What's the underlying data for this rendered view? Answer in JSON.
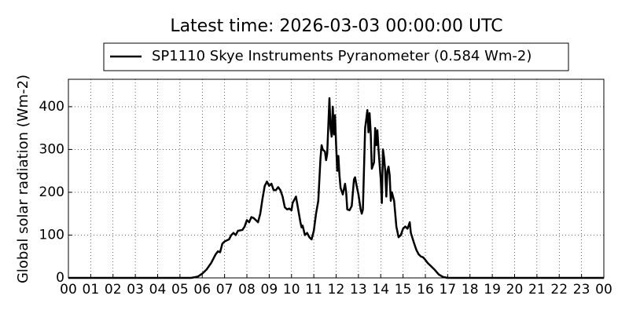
{
  "chart_data": {
    "type": "line",
    "title": "Latest time: 2026-03-03 00:00:00 UTC",
    "y_label": "Global solar radiation (Wm-2)",
    "grid": true,
    "legend": "top",
    "xlim": [
      0,
      24
    ],
    "xticks": [
      {
        "value": 0,
        "label": "00"
      },
      {
        "value": 1,
        "label": "01"
      },
      {
        "value": 2,
        "label": "02"
      },
      {
        "value": 3,
        "label": "03"
      },
      {
        "value": 4,
        "label": "04"
      },
      {
        "value": 5,
        "label": "05"
      },
      {
        "value": 6,
        "label": "06"
      },
      {
        "value": 7,
        "label": "07"
      },
      {
        "value": 8,
        "label": "08"
      },
      {
        "value": 9,
        "label": "09"
      },
      {
        "value": 10,
        "label": "10"
      },
      {
        "value": 11,
        "label": "11"
      },
      {
        "value": 12,
        "label": "12"
      },
      {
        "value": 13,
        "label": "13"
      },
      {
        "value": 14,
        "label": "14"
      },
      {
        "value": 15,
        "label": "15"
      },
      {
        "value": 16,
        "label": "16"
      },
      {
        "value": 17,
        "label": "17"
      },
      {
        "value": 18,
        "label": "18"
      },
      {
        "value": 19,
        "label": "19"
      },
      {
        "value": 20,
        "label": "20"
      },
      {
        "value": 21,
        "label": "21"
      },
      {
        "value": 22,
        "label": "22"
      },
      {
        "value": 23,
        "label": "23"
      },
      {
        "value": 24,
        "label": "00"
      }
    ],
    "ylim": [
      0,
      464
    ],
    "yticks": [
      0,
      100,
      200,
      300,
      400
    ],
    "x": [
      0,
      5.5,
      5.8,
      6.0,
      6.2,
      6.4,
      6.6,
      6.7,
      6.8,
      6.9,
      7.0,
      7.2,
      7.3,
      7.4,
      7.5,
      7.6,
      7.8,
      7.9,
      8.0,
      8.1,
      8.2,
      8.3,
      8.4,
      8.5,
      8.6,
      8.7,
      8.8,
      8.9,
      9.0,
      9.1,
      9.2,
      9.3,
      9.4,
      9.5,
      9.6,
      9.7,
      9.8,
      9.9,
      10.0,
      10.05,
      10.2,
      10.3,
      10.4,
      10.45,
      10.5,
      10.6,
      10.7,
      10.8,
      10.9,
      11.0,
      11.1,
      11.2,
      11.3,
      11.35,
      11.4,
      11.5,
      11.55,
      11.6,
      11.7,
      11.75,
      11.8,
      11.85,
      11.9,
      11.95,
      12.0,
      12.05,
      12.1,
      12.15,
      12.2,
      12.3,
      12.4,
      12.45,
      12.5,
      12.6,
      12.7,
      12.8,
      12.85,
      12.9,
      13.0,
      13.1,
      13.15,
      13.2,
      13.3,
      13.35,
      13.4,
      13.45,
      13.5,
      13.55,
      13.6,
      13.7,
      13.75,
      13.8,
      13.85,
      13.9,
      14.0,
      14.05,
      14.1,
      14.15,
      14.2,
      14.25,
      14.3,
      14.35,
      14.4,
      14.45,
      14.5,
      14.6,
      14.7,
      14.8,
      14.9,
      15.0,
      15.1,
      15.2,
      15.3,
      15.35,
      15.5,
      15.6,
      15.7,
      15.8,
      15.9,
      16.0,
      16.1,
      16.2,
      16.4,
      16.6,
      16.8,
      17.0,
      24
    ],
    "series": [
      {
        "name": "SP1110 Skye Instruments Pyranometer (0.584 Wm-2)",
        "color": "#000000",
        "values": [
          0,
          0,
          3,
          10,
          20,
          35,
          55,
          62,
          60,
          80,
          85,
          90,
          100,
          105,
          100,
          110,
          112,
          120,
          135,
          130,
          142,
          140,
          135,
          130,
          150,
          185,
          215,
          225,
          215,
          220,
          205,
          205,
          212,
          205,
          190,
          165,
          160,
          162,
          158,
          175,
          190,
          160,
          130,
          118,
          122,
          100,
          105,
          95,
          90,
          110,
          150,
          180,
          280,
          310,
          300,
          295,
          275,
          290,
          420,
          350,
          330,
          400,
          335,
          380,
          310,
          250,
          285,
          240,
          210,
          195,
          220,
          200,
          160,
          158,
          168,
          230,
          235,
          220,
          195,
          160,
          150,
          160,
          350,
          370,
          392,
          340,
          385,
          340,
          255,
          270,
          350,
          310,
          345,
          300,
          230,
          175,
          300,
          280,
          250,
          190,
          250,
          260,
          240,
          180,
          200,
          180,
          120,
          95,
          100,
          115,
          120,
          115,
          130,
          105,
          80,
          65,
          55,
          50,
          48,
          42,
          35,
          30,
          20,
          8,
          2,
          0,
          0
        ]
      }
    ]
  }
}
